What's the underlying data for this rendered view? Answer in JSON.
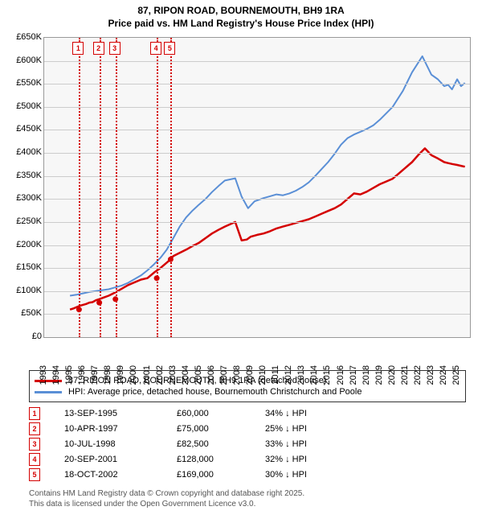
{
  "title_line1": "87, RIPON ROAD, BOURNEMOUTH, BH9 1RA",
  "title_line2": "Price paid vs. HM Land Registry's House Price Index (HPI)",
  "chart": {
    "type": "line",
    "plot_background": "#f7f7f7",
    "border_color": "#999999",
    "grid_color": "#cccccc",
    "y_axis": {
      "kind": "price-k",
      "min": 0,
      "max": 650,
      "step": 50,
      "tick_labels": [
        "£0",
        "£50K",
        "£100K",
        "£150K",
        "£200K",
        "£250K",
        "£300K",
        "£350K",
        "£400K",
        "£450K",
        "£500K",
        "£550K",
        "£600K",
        "£650K"
      ],
      "label_fontsize": 11
    },
    "x_axis": {
      "kind": "year",
      "min": 1993,
      "max": 2025.99,
      "tick_step": 1,
      "vertical_labels": true,
      "tick_labels": [
        "1993",
        "1994",
        "1995",
        "1996",
        "1997",
        "1998",
        "1999",
        "2000",
        "2001",
        "2002",
        "2003",
        "2004",
        "2005",
        "2006",
        "2007",
        "2008",
        "2009",
        "2010",
        "2011",
        "2012",
        "2013",
        "2014",
        "2015",
        "2016",
        "2017",
        "2018",
        "2019",
        "2020",
        "2021",
        "2022",
        "2023",
        "2024",
        "2025"
      ],
      "label_fontsize": 11
    },
    "series": [
      {
        "name": "87, RIPON ROAD, BOURNEMOUTH, BH9 1RA (detached house)",
        "color": "#d40000",
        "line_width": 2.5,
        "points_y_k": [
          60,
          62,
          65,
          68,
          70,
          72,
          75,
          76,
          80,
          82.5,
          85,
          90,
          97,
          105,
          113,
          125,
          128,
          140,
          150,
          169,
          176,
          183,
          190,
          198,
          205,
          215,
          225,
          233,
          240,
          250,
          210,
          212,
          218,
          222,
          225,
          230,
          236,
          240,
          244,
          248,
          252,
          256,
          262,
          268,
          274,
          280,
          288,
          300,
          312,
          310,
          316,
          324,
          332,
          338,
          344,
          356,
          368,
          380,
          396,
          410,
          395,
          388,
          380,
          378,
          376,
          374,
          372,
          370
        ],
        "points_x_year": [
          1995.0,
          1995.25,
          1995.5,
          1995.75,
          1996.0,
          1996.25,
          1996.5,
          1996.75,
          1997.0,
          1997.27,
          1997.5,
          1998.0,
          1998.5,
          1999.0,
          1999.5,
          2000.5,
          2001.0,
          2001.5,
          2002.0,
          2002.8,
          2003.0,
          2003.5,
          2004.0,
          2004.5,
          2005.0,
          2005.5,
          2006.0,
          2006.5,
          2007.0,
          2007.8,
          2008.3,
          2008.7,
          2009.0,
          2009.5,
          2010.0,
          2010.5,
          2011.0,
          2011.5,
          2012.0,
          2012.5,
          2013.0,
          2013.5,
          2014.0,
          2014.5,
          2015.0,
          2015.5,
          2016.0,
          2016.5,
          2017.0,
          2017.5,
          2018.0,
          2018.5,
          2019.0,
          2019.5,
          2020.0,
          2020.5,
          2021.0,
          2021.5,
          2022.0,
          2022.5,
          2023.0,
          2023.5,
          2024.0,
          2024.3,
          2024.6,
          2025.0,
          2025.3,
          2025.6
        ],
        "sale_markers": [
          {
            "n": "1",
            "x_year": 1995.7,
            "y_k": 60
          },
          {
            "n": "2",
            "x_year": 1997.27,
            "y_k": 75
          },
          {
            "n": "3",
            "x_year": 1998.52,
            "y_k": 82.5
          },
          {
            "n": "4",
            "x_year": 2001.72,
            "y_k": 128
          },
          {
            "n": "5",
            "x_year": 2002.8,
            "y_k": 169
          }
        ]
      },
      {
        "name": "HPI: Average price, detached house, Bournemouth Christchurch and Poole",
        "color": "#5a8fd6",
        "line_width": 2,
        "points_y_k": [
          90,
          92,
          95,
          98,
          100,
          102,
          104,
          108,
          112,
          118,
          126,
          134,
          145,
          158,
          172,
          190,
          215,
          240,
          260,
          275,
          288,
          300,
          315,
          328,
          340,
          345,
          305,
          280,
          295,
          302,
          306,
          310,
          308,
          312,
          318,
          326,
          336,
          350,
          365,
          380,
          398,
          418,
          432,
          440,
          446,
          452,
          460,
          472,
          500,
          535,
          575,
          610,
          570,
          560,
          545,
          548,
          538,
          560,
          545,
          552
        ],
        "points_x_year": [
          1995.0,
          1995.5,
          1996.0,
          1996.5,
          1997.0,
          1997.5,
          1998.0,
          1998.5,
          1999.0,
          1999.5,
          2000.0,
          2000.5,
          2001.0,
          2001.5,
          2002.0,
          2002.5,
          2003.0,
          2003.5,
          2004.0,
          2004.5,
          2005.0,
          2005.5,
          2006.0,
          2006.5,
          2007.0,
          2007.8,
          2008.3,
          2008.8,
          2009.3,
          2010.0,
          2010.5,
          2011.0,
          2011.5,
          2012.0,
          2012.5,
          2013.0,
          2013.5,
          2014.0,
          2014.5,
          2015.0,
          2015.5,
          2016.0,
          2016.5,
          2017.0,
          2017.5,
          2018.0,
          2018.5,
          2019.0,
          2020.0,
          2020.8,
          2021.5,
          2022.3,
          2023.0,
          2023.5,
          2024.0,
          2024.3,
          2024.6,
          2025.0,
          2025.3,
          2025.6
        ]
      }
    ],
    "marker_line_color": "#d40000",
    "marker_line_style": "dotted",
    "marker_box_top_offset": 6
  },
  "legend": {
    "border_color": "#333333",
    "rows": [
      {
        "color": "#d40000",
        "label": "87, RIPON ROAD, BOURNEMOUTH, BH9 1RA (detached house)"
      },
      {
        "color": "#5a8fd6",
        "label": "HPI: Average price, detached house, Bournemouth Christchurch and Poole"
      }
    ]
  },
  "sales_table": {
    "marker_border_color": "#d40000",
    "marker_text_color": "#d40000",
    "diff_arrow": "↓",
    "rows": [
      {
        "n": "1",
        "date": "13-SEP-1995",
        "price": "£60,000",
        "diff": "34% ↓ HPI"
      },
      {
        "n": "2",
        "date": "10-APR-1997",
        "price": "£75,000",
        "diff": "25% ↓ HPI"
      },
      {
        "n": "3",
        "date": "10-JUL-1998",
        "price": "£82,500",
        "diff": "33% ↓ HPI"
      },
      {
        "n": "4",
        "date": "20-SEP-2001",
        "price": "£128,000",
        "diff": "32% ↓ HPI"
      },
      {
        "n": "5",
        "date": "18-OCT-2002",
        "price": "£169,000",
        "diff": "30% ↓ HPI"
      }
    ]
  },
  "footer_line1": "Contains HM Land Registry data © Crown copyright and database right 2025.",
  "footer_line2": "This data is licensed under the Open Government Licence v3.0."
}
